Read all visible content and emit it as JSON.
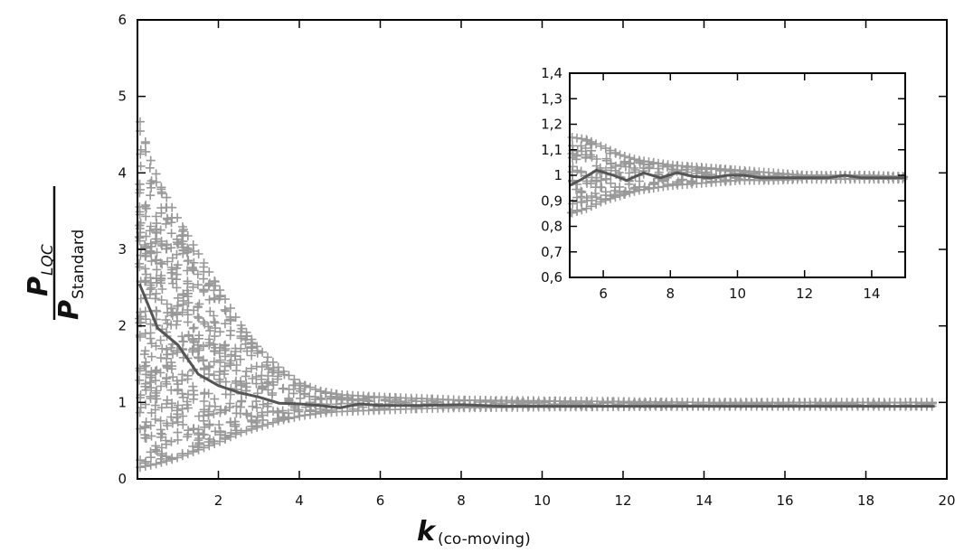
{
  "chart_data": [
    {
      "type": "scatter",
      "name": "main",
      "xlabel": "k",
      "xlabel_sub": "(co-moving)",
      "ylabel_num": "P",
      "ylabel_num_sub": "LQC",
      "ylabel_den": "P",
      "ylabel_den_sub": "Standard",
      "xlim": [
        0,
        20
      ],
      "ylim": [
        0,
        6
      ],
      "xticks": [
        2,
        4,
        6,
        8,
        10,
        12,
        14,
        16,
        18,
        20
      ],
      "xtick_labels": [
        "2",
        "4",
        "6",
        "8",
        "10",
        "12",
        "14",
        "16",
        "18",
        "20"
      ],
      "yticks": [
        0,
        1,
        2,
        3,
        4,
        5,
        6
      ],
      "ytick_labels": [
        "0",
        "1",
        "2",
        "3",
        "4",
        "5",
        "6"
      ],
      "grid": false,
      "series": [
        {
          "kind": "scatter",
          "marker": "+",
          "color": "#999999",
          "envelope_upper": [
            [
              0.05,
              4.7
            ],
            [
              0.3,
              4.2
            ],
            [
              0.6,
              3.8
            ],
            [
              1.0,
              3.4
            ],
            [
              1.5,
              2.95
            ],
            [
              2.0,
              2.5
            ],
            [
              2.5,
              2.05
            ],
            [
              3.0,
              1.7
            ],
            [
              3.5,
              1.45
            ],
            [
              4.0,
              1.25
            ],
            [
              4.5,
              1.15
            ],
            [
              5.0,
              1.1
            ],
            [
              6.0,
              1.07
            ],
            [
              7.0,
              1.05
            ],
            [
              8.0,
              1.03
            ],
            [
              10.0,
              1.02
            ],
            [
              14.0,
              1.0
            ],
            [
              20.0,
              1.0
            ]
          ],
          "envelope_lower": [
            [
              0.05,
              0.15
            ],
            [
              0.5,
              0.2
            ],
            [
              1.0,
              0.28
            ],
            [
              1.5,
              0.38
            ],
            [
              2.0,
              0.48
            ],
            [
              2.5,
              0.6
            ],
            [
              3.0,
              0.68
            ],
            [
              3.5,
              0.76
            ],
            [
              4.0,
              0.82
            ],
            [
              4.5,
              0.86
            ],
            [
              5.0,
              0.88
            ],
            [
              6.0,
              0.9
            ],
            [
              7.0,
              0.92
            ],
            [
              8.0,
              0.93
            ],
            [
              10.0,
              0.94
            ],
            [
              14.0,
              0.95
            ],
            [
              20.0,
              0.95
            ]
          ]
        },
        {
          "kind": "line",
          "color": "#555555",
          "x": [
            0.05,
            0.5,
            1.0,
            1.5,
            2.0,
            2.5,
            3.0,
            3.5,
            4.0,
            4.5,
            5.0,
            5.5,
            6.0,
            7.0,
            8.0,
            9.0,
            10.0,
            12.0,
            14.0,
            16.0,
            18.0,
            19.7
          ],
          "y": [
            2.55,
            1.97,
            1.75,
            1.37,
            1.22,
            1.13,
            1.07,
            0.99,
            0.98,
            0.96,
            0.93,
            0.98,
            0.96,
            0.96,
            0.97,
            0.95,
            0.95,
            0.95,
            0.95,
            0.95,
            0.95,
            0.95
          ]
        }
      ]
    },
    {
      "type": "scatter",
      "name": "inset",
      "xlim": [
        5,
        15
      ],
      "ylim": [
        0.6,
        1.4
      ],
      "xticks": [
        6,
        8,
        10,
        12,
        14
      ],
      "xtick_labels": [
        "6",
        "8",
        "10",
        "12",
        "14"
      ],
      "yticks": [
        0.6,
        0.7,
        0.8,
        0.9,
        1.0,
        1.1,
        1.2,
        1.3,
        1.4
      ],
      "ytick_labels": [
        "0,6",
        "0,7",
        "0,8",
        "0,9",
        "1",
        "1,1",
        "1,2",
        "1,3",
        "1,4"
      ],
      "grid": false,
      "series": [
        {
          "kind": "scatter",
          "marker": "+",
          "color": "#999999",
          "envelope_upper": [
            [
              5.0,
              1.15
            ],
            [
              5.5,
              1.14
            ],
            [
              6.0,
              1.11
            ],
            [
              6.5,
              1.08
            ],
            [
              7.0,
              1.06
            ],
            [
              7.5,
              1.05
            ],
            [
              8.0,
              1.04
            ],
            [
              9.0,
              1.03
            ],
            [
              10.0,
              1.02
            ],
            [
              11.0,
              1.01
            ],
            [
              12.0,
              1.0
            ],
            [
              13.0,
              1.0
            ],
            [
              14.0,
              1.0
            ],
            [
              15.0,
              0.995
            ]
          ],
          "envelope_lower": [
            [
              5.0,
              0.85
            ],
            [
              5.5,
              0.87
            ],
            [
              6.0,
              0.9
            ],
            [
              6.5,
              0.92
            ],
            [
              7.0,
              0.94
            ],
            [
              7.5,
              0.95
            ],
            [
              8.0,
              0.96
            ],
            [
              9.0,
              0.97
            ],
            [
              10.0,
              0.98
            ],
            [
              11.0,
              0.98
            ],
            [
              12.0,
              0.985
            ],
            [
              13.0,
              0.985
            ],
            [
              14.0,
              0.985
            ],
            [
              15.0,
              0.985
            ]
          ]
        },
        {
          "kind": "line",
          "color": "#555555",
          "x": [
            5.0,
            5.3,
            5.8,
            6.3,
            6.7,
            7.2,
            7.7,
            8.2,
            8.7,
            9.2,
            9.7,
            10.2,
            10.7,
            11.2,
            11.7,
            12.2,
            12.7,
            13.2,
            13.7,
            14.2,
            14.7,
            15.0
          ],
          "y": [
            0.96,
            0.98,
            1.02,
            1.0,
            0.98,
            1.01,
            0.99,
            1.01,
            0.995,
            0.99,
            1.0,
            1.0,
            0.99,
            0.99,
            0.99,
            0.99,
            0.99,
            1.0,
            0.99,
            0.99,
            0.99,
            0.99
          ]
        }
      ]
    }
  ]
}
